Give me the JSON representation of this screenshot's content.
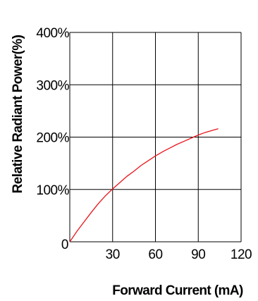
{
  "chart_data": {
    "type": "line",
    "title": "",
    "xlabel": "Forward Current (mA)",
    "ylabel": "Relative Radiant Power(%)",
    "xlim": [
      0,
      120
    ],
    "ylim": [
      0,
      400
    ],
    "x_ticks": [
      "0",
      "30",
      "60",
      "90",
      "120"
    ],
    "y_ticks": [
      "0",
      "100%",
      "200%",
      "300%",
      "400%"
    ],
    "grid": true,
    "legend": "none",
    "series": [
      {
        "color": "#e8141b",
        "x": [
          0,
          5,
          10,
          15,
          20,
          25,
          30,
          35,
          40,
          45,
          50,
          55,
          60,
          65,
          70,
          75,
          80,
          85,
          90,
          95,
          100,
          104
        ],
        "y": [
          0,
          20,
          38,
          56,
          73,
          88,
          101,
          113,
          125,
          135,
          146,
          155,
          164,
          172,
          179,
          186,
          192,
          198,
          204,
          209,
          213,
          216
        ]
      }
    ]
  }
}
